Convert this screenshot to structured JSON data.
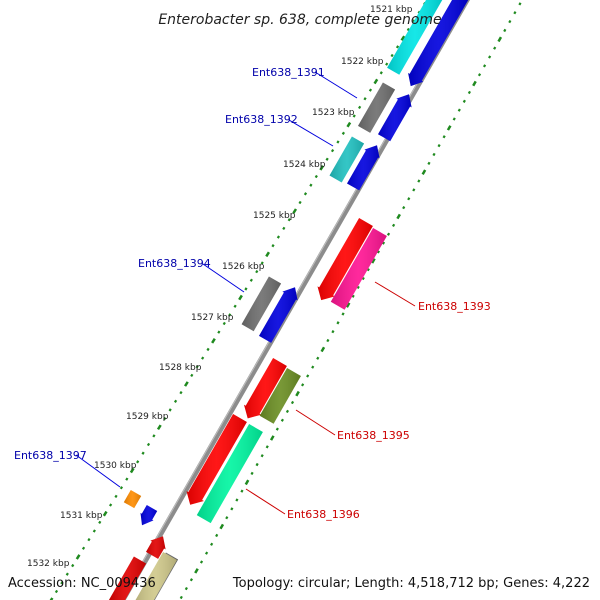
{
  "title": "Enterobacter sp. 638, complete genome",
  "accession": "Accession: NC_009436",
  "topology": "Topology: circular; Length: 4,518,712 bp; Genes: 4,222",
  "colors": {
    "backbone": "#8c8c8c",
    "tick_inner": "#1f8a1f",
    "tick_outer": "#1f8a1f",
    "label_forward": "#0000aa",
    "label_reverse": "#cc0000"
  },
  "kbp_labels": [
    "1521 kbp",
    "1522 kbp",
    "1523 kbp",
    "1524 kbp",
    "1525 kbp",
    "1526 kbp",
    "1527 kbp",
    "1528 kbp",
    "1529 kbp",
    "1530 kbp",
    "1531 kbp",
    "1532 kbp"
  ],
  "gene_labels": [
    {
      "id": "g1391",
      "text": "Ent638_1391",
      "side": "left"
    },
    {
      "id": "g1392",
      "text": "Ent638_1392",
      "side": "left"
    },
    {
      "id": "g1393",
      "text": "Ent638_1393",
      "side": "right"
    },
    {
      "id": "g1394",
      "text": "Ent638_1394",
      "side": "left"
    },
    {
      "id": "g1395",
      "text": "Ent638_1395",
      "side": "right"
    },
    {
      "id": "g1396",
      "text": "Ent638_1396",
      "side": "right"
    },
    {
      "id": "g1397",
      "text": "Ent638_1397",
      "side": "left"
    }
  ]
}
